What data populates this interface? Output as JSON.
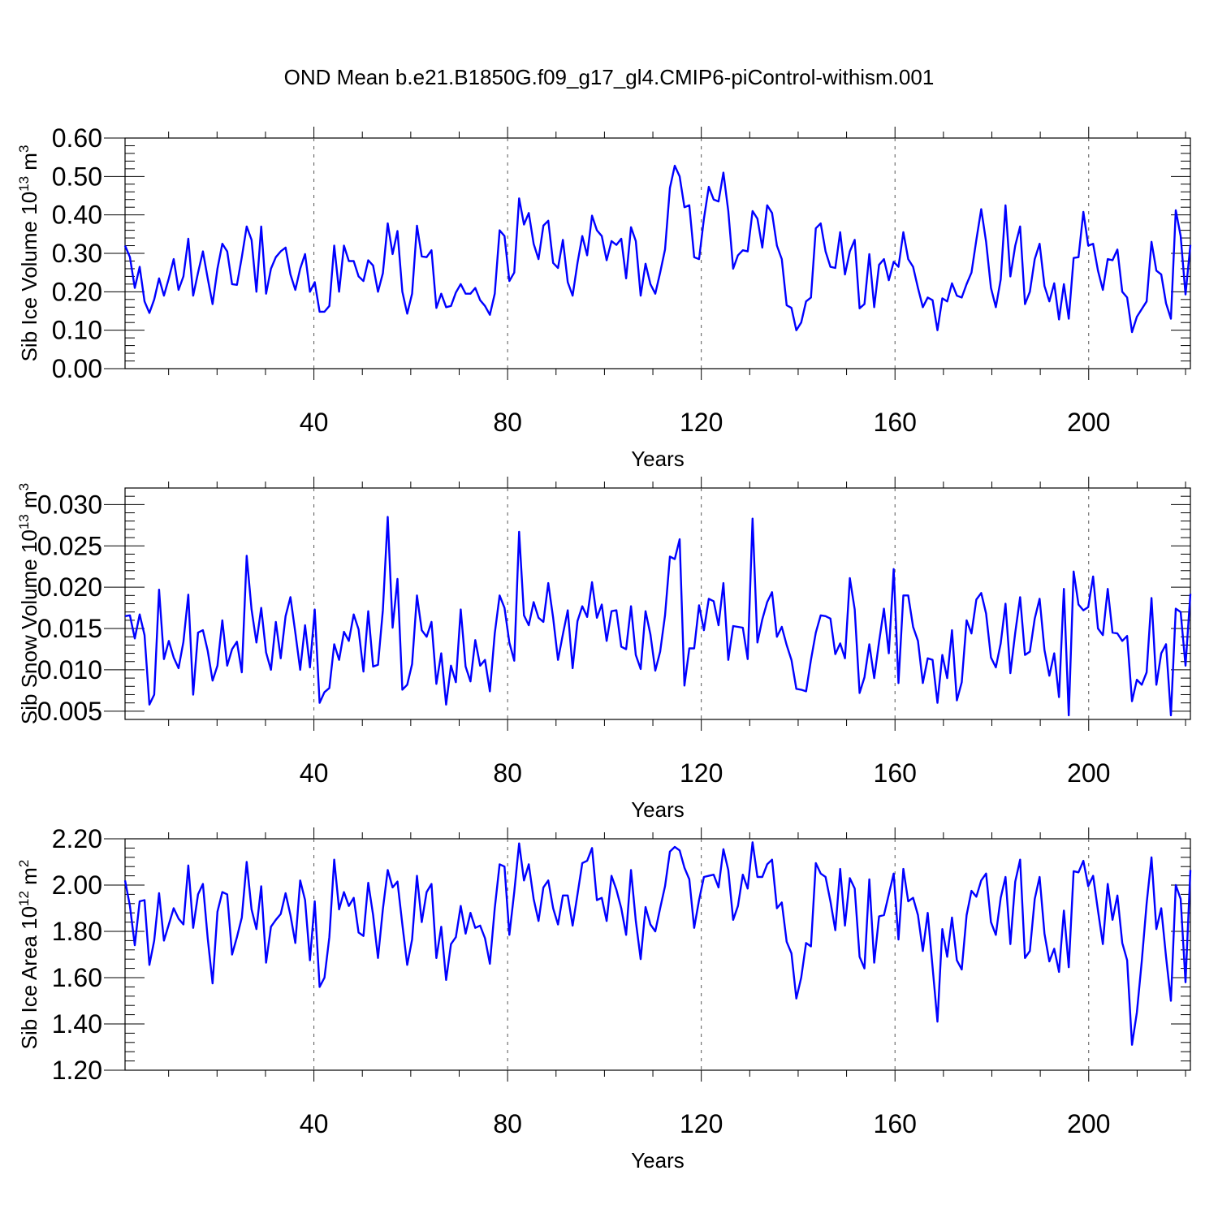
{
  "title": "OND Mean b.e21.B1850G.f09_g17_gl4.CMIP6-piControl-withism.001",
  "chart_data": [
    {
      "type": "line",
      "ylabel": "Sib Ice Volume 10",
      "ylabel_exponent": "13",
      "ylabel_unit": "m",
      "ylabel_unit_exponent": "3",
      "xlabel": "Years",
      "xlim": [
        1,
        221
      ],
      "ylim": [
        0.0,
        0.6
      ],
      "ytick_values": [
        0.0,
        0.1,
        0.2,
        0.3,
        0.4,
        0.5,
        0.6
      ],
      "ytick_labels": [
        "0.00",
        "0.10",
        "0.20",
        "0.30",
        "0.40",
        "0.50",
        "0.60"
      ],
      "xtick_values": [
        40,
        80,
        120,
        160,
        200
      ],
      "xtick_labels": [
        "40",
        "80",
        "120",
        "160",
        "200"
      ],
      "grid": "dashed vertical lines at major x ticks",
      "color": "#0000ff",
      "values": [
        0.32,
        0.29,
        0.21,
        0.265,
        0.175,
        0.145,
        0.18,
        0.235,
        0.19,
        0.235,
        0.285,
        0.205,
        0.24,
        0.338,
        0.19,
        0.25,
        0.305,
        0.235,
        0.168,
        0.26,
        0.325,
        0.305,
        0.22,
        0.218,
        0.29,
        0.37,
        0.335,
        0.2,
        0.37,
        0.195,
        0.26,
        0.29,
        0.305,
        0.315,
        0.245,
        0.205,
        0.26,
        0.298,
        0.2,
        0.225,
        0.148,
        0.148,
        0.163,
        0.32,
        0.2,
        0.32,
        0.28,
        0.28,
        0.24,
        0.228,
        0.282,
        0.268,
        0.2,
        0.248,
        0.378,
        0.298,
        0.358,
        0.2,
        0.143,
        0.195,
        0.372,
        0.292,
        0.29,
        0.308,
        0.158,
        0.195,
        0.16,
        0.163,
        0.198,
        0.22,
        0.195,
        0.195,
        0.21,
        0.178,
        0.163,
        0.14,
        0.195,
        0.36,
        0.345,
        0.228,
        0.25,
        0.443,
        0.375,
        0.405,
        0.325,
        0.285,
        0.372,
        0.385,
        0.275,
        0.262,
        0.335,
        0.225,
        0.19,
        0.275,
        0.345,
        0.295,
        0.398,
        0.36,
        0.345,
        0.282,
        0.332,
        0.322,
        0.338,
        0.235,
        0.368,
        0.332,
        0.19,
        0.273,
        0.22,
        0.195,
        0.25,
        0.31,
        0.47,
        0.528,
        0.5,
        0.42,
        0.425,
        0.29,
        0.285,
        0.39,
        0.473,
        0.44,
        0.435,
        0.51,
        0.41,
        0.26,
        0.295,
        0.308,
        0.305,
        0.41,
        0.39,
        0.315,
        0.425,
        0.405,
        0.32,
        0.285,
        0.165,
        0.158,
        0.1,
        0.12,
        0.175,
        0.185,
        0.365,
        0.378,
        0.305,
        0.265,
        0.262,
        0.355,
        0.245,
        0.305,
        0.335,
        0.157,
        0.168,
        0.298,
        0.16,
        0.27,
        0.285,
        0.23,
        0.278,
        0.265,
        0.355,
        0.285,
        0.265,
        0.21,
        0.16,
        0.185,
        0.178,
        0.1,
        0.183,
        0.175,
        0.222,
        0.19,
        0.185,
        0.22,
        0.25,
        0.335,
        0.415,
        0.33,
        0.21,
        0.16,
        0.232,
        0.425,
        0.24,
        0.32,
        0.37,
        0.168,
        0.2,
        0.285,
        0.325,
        0.215,
        0.175,
        0.222,
        0.128,
        0.22,
        0.13,
        0.288,
        0.29,
        0.408,
        0.32,
        0.325,
        0.255,
        0.205,
        0.285,
        0.282,
        0.31,
        0.2,
        0.185,
        0.095,
        0.135,
        0.155,
        0.175,
        0.33,
        0.255,
        0.245,
        0.17,
        0.13,
        0.412,
        0.345,
        0.193,
        0.322
      ]
    },
    {
      "type": "line",
      "ylabel": "Sib Snow Volume 10",
      "ylabel_exponent": "13",
      "ylabel_unit": "m",
      "ylabel_unit_exponent": "3",
      "xlabel": "Years",
      "xlim": [
        1,
        221
      ],
      "ylim": [
        0.004,
        0.032
      ],
      "ytick_values": [
        0.005,
        0.01,
        0.015,
        0.02,
        0.025,
        0.03
      ],
      "ytick_labels": [
        "0.005",
        "0.010",
        "0.015",
        "0.020",
        "0.025",
        "0.030"
      ],
      "xtick_values": [
        40,
        80,
        120,
        160,
        200
      ],
      "xtick_labels": [
        "40",
        "80",
        "120",
        "160",
        "200"
      ],
      "grid": "dashed vertical lines at major x ticks",
      "color": "#0000ff",
      "values": [
        0.0165,
        0.0166,
        0.0138,
        0.0167,
        0.0142,
        0.0058,
        0.007,
        0.0197,
        0.0113,
        0.0135,
        0.0115,
        0.0102,
        0.0134,
        0.0191,
        0.007,
        0.0145,
        0.0148,
        0.0123,
        0.0087,
        0.0105,
        0.016,
        0.0105,
        0.0125,
        0.0134,
        0.0097,
        0.0238,
        0.0173,
        0.0133,
        0.0175,
        0.0121,
        0.01,
        0.0158,
        0.0114,
        0.0165,
        0.0188,
        0.0145,
        0.01,
        0.0154,
        0.0103,
        0.0173,
        0.006,
        0.0073,
        0.0078,
        0.0131,
        0.0112,
        0.0146,
        0.0135,
        0.0167,
        0.0149,
        0.0098,
        0.0171,
        0.0104,
        0.0106,
        0.0172,
        0.0285,
        0.0151,
        0.021,
        0.0076,
        0.0082,
        0.0107,
        0.019,
        0.0148,
        0.014,
        0.0158,
        0.0083,
        0.012,
        0.0058,
        0.0105,
        0.0085,
        0.0173,
        0.0104,
        0.0086,
        0.0136,
        0.0105,
        0.0112,
        0.0074,
        0.0144,
        0.019,
        0.0175,
        0.0133,
        0.0111,
        0.0267,
        0.0166,
        0.0154,
        0.0182,
        0.0163,
        0.0158,
        0.0205,
        0.0163,
        0.0112,
        0.0143,
        0.0172,
        0.0102,
        0.0159,
        0.0177,
        0.0164,
        0.0206,
        0.0163,
        0.0179,
        0.0135,
        0.0171,
        0.0172,
        0.0128,
        0.0125,
        0.0177,
        0.0118,
        0.0101,
        0.0171,
        0.0143,
        0.0099,
        0.0122,
        0.0166,
        0.0237,
        0.0234,
        0.0258,
        0.0081,
        0.0126,
        0.0126,
        0.0178,
        0.0148,
        0.0186,
        0.0183,
        0.0154,
        0.0205,
        0.0112,
        0.0153,
        0.0152,
        0.0151,
        0.0113,
        0.0283,
        0.0133,
        0.0161,
        0.0182,
        0.0194,
        0.014,
        0.0152,
        0.013,
        0.0112,
        0.0077,
        0.0076,
        0.0074,
        0.0112,
        0.0145,
        0.0166,
        0.0165,
        0.0162,
        0.0119,
        0.0132,
        0.0114,
        0.0211,
        0.0173,
        0.0072,
        0.0091,
        0.0131,
        0.009,
        0.0134,
        0.0174,
        0.012,
        0.0222,
        0.0084,
        0.019,
        0.019,
        0.0152,
        0.0135,
        0.0084,
        0.0114,
        0.0112,
        0.006,
        0.0118,
        0.009,
        0.0148,
        0.0063,
        0.0085,
        0.016,
        0.0144,
        0.0185,
        0.0193,
        0.0168,
        0.0115,
        0.0103,
        0.0132,
        0.018,
        0.0096,
        0.0145,
        0.0188,
        0.0118,
        0.0122,
        0.0162,
        0.0186,
        0.0124,
        0.0093,
        0.012,
        0.0067,
        0.0198,
        0.0045,
        0.0219,
        0.0179,
        0.0172,
        0.0176,
        0.0213,
        0.015,
        0.0142,
        0.0198,
        0.0145,
        0.0144,
        0.0135,
        0.0141,
        0.0062,
        0.0088,
        0.0082,
        0.0097,
        0.0187,
        0.0082,
        0.012,
        0.0131,
        0.0045,
        0.0174,
        0.017,
        0.0105,
        0.0192
      ]
    },
    {
      "type": "line",
      "ylabel": "Sib Ice Area 10",
      "ylabel_exponent": "12",
      "ylabel_unit": "m",
      "ylabel_unit_exponent": "2",
      "xlabel": "Years",
      "xlim": [
        1,
        221
      ],
      "ylim": [
        1.2,
        2.2
      ],
      "ytick_values": [
        1.2,
        1.4,
        1.6,
        1.8,
        2.0,
        2.2
      ],
      "ytick_labels": [
        "1.20",
        "1.40",
        "1.60",
        "1.80",
        "2.00",
        "2.20"
      ],
      "xtick_values": [
        40,
        80,
        120,
        160,
        200
      ],
      "xtick_labels": [
        "40",
        "80",
        "120",
        "160",
        "200"
      ],
      "grid": "dashed vertical lines at major x ticks",
      "color": "#0000ff",
      "values": [
        2.02,
        1.91,
        1.74,
        1.93,
        1.935,
        1.655,
        1.76,
        1.965,
        1.76,
        1.83,
        1.9,
        1.855,
        1.83,
        2.085,
        1.815,
        1.96,
        2.005,
        1.77,
        1.575,
        1.885,
        1.97,
        1.96,
        1.7,
        1.775,
        1.86,
        2.1,
        1.895,
        1.81,
        1.995,
        1.665,
        1.82,
        1.85,
        1.875,
        1.965,
        1.87,
        1.75,
        2.02,
        1.935,
        1.675,
        1.93,
        1.56,
        1.6,
        1.775,
        2.11,
        1.895,
        1.97,
        1.91,
        1.945,
        1.795,
        1.78,
        2.01,
        1.87,
        1.685,
        1.895,
        2.065,
        1.99,
        2.015,
        1.83,
        1.655,
        1.765,
        2.04,
        1.84,
        1.97,
        2.005,
        1.685,
        1.82,
        1.59,
        1.745,
        1.775,
        1.91,
        1.79,
        1.88,
        1.815,
        1.825,
        1.77,
        1.66,
        1.9,
        2.09,
        2.08,
        1.785,
        1.97,
        2.18,
        2.02,
        2.09,
        1.94,
        1.845,
        1.99,
        2.02,
        1.9,
        1.83,
        1.955,
        1.955,
        1.825,
        1.96,
        2.095,
        2.105,
        2.16,
        1.935,
        1.945,
        1.845,
        2.04,
        1.98,
        1.9,
        1.785,
        2.065,
        1.845,
        1.68,
        1.905,
        1.83,
        1.8,
        1.9,
        1.995,
        2.145,
        2.165,
        2.15,
        2.075,
        2.025,
        1.815,
        1.935,
        2.035,
        2.04,
        2.045,
        1.99,
        2.155,
        2.065,
        1.85,
        1.91,
        2.045,
        1.985,
        2.185,
        2.035,
        2.035,
        2.09,
        2.11,
        1.9,
        1.925,
        1.755,
        1.705,
        1.51,
        1.6,
        1.75,
        1.735,
        2.095,
        2.05,
        2.035,
        1.93,
        1.805,
        2.07,
        1.825,
        2.03,
        1.985,
        1.69,
        1.64,
        2.025,
        1.665,
        1.865,
        1.87,
        1.96,
        2.05,
        1.765,
        2.07,
        1.93,
        1.945,
        1.87,
        1.715,
        1.88,
        1.645,
        1.41,
        1.81,
        1.69,
        1.86,
        1.675,
        1.635,
        1.87,
        1.975,
        1.95,
        2.02,
        2.05,
        1.84,
        1.785,
        1.945,
        2.035,
        1.745,
        2.015,
        2.11,
        1.685,
        1.715,
        1.94,
        2.035,
        1.79,
        1.67,
        1.725,
        1.625,
        1.89,
        1.645,
        2.06,
        2.055,
        2.105,
        1.995,
        2.04,
        1.89,
        1.745,
        2.005,
        1.85,
        1.955,
        1.75,
        1.675,
        1.31,
        1.45,
        1.67,
        1.92,
        2.12,
        1.81,
        1.9,
        1.69,
        1.5,
        2.0,
        1.94,
        1.58,
        2.065
      ]
    }
  ]
}
